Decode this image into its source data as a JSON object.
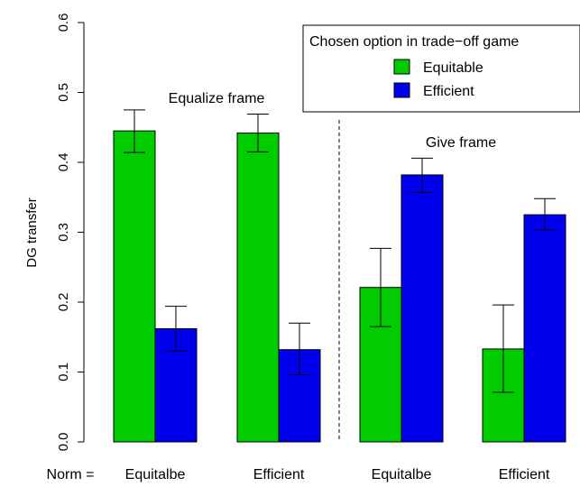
{
  "chart_data": {
    "type": "bar",
    "ylabel": "DG transfer",
    "ylim": [
      0,
      0.6
    ],
    "yticks": [
      0.0,
      0.1,
      0.2,
      0.3,
      0.4,
      0.5,
      0.6
    ],
    "ytick_labels": [
      "0.0",
      "0.1",
      "0.2",
      "0.3",
      "0.4",
      "0.5",
      "0.6"
    ],
    "category_prefix": "Norm =",
    "categories": [
      "Equitalbe",
      "Efficient",
      "Equitalbe",
      "Efficient"
    ],
    "frames": [
      "Equalize frame",
      "Give frame"
    ],
    "legend": {
      "title": "Chosen option in trade−off game",
      "placement": "top-right"
    },
    "series": [
      {
        "name": "Equitable",
        "color": "#00cc00",
        "values": [
          0.445,
          0.442,
          0.221,
          0.133
        ],
        "err_low": [
          0.414,
          0.415,
          0.165,
          0.071
        ],
        "err_high": [
          0.475,
          0.469,
          0.277,
          0.196
        ]
      },
      {
        "name": "Efficient",
        "color": "#0000ee",
        "values": [
          0.162,
          0.132,
          0.382,
          0.325
        ],
        "err_low": [
          0.13,
          0.096,
          0.357,
          0.303
        ],
        "err_high": [
          0.194,
          0.17,
          0.406,
          0.348
        ]
      }
    ]
  }
}
